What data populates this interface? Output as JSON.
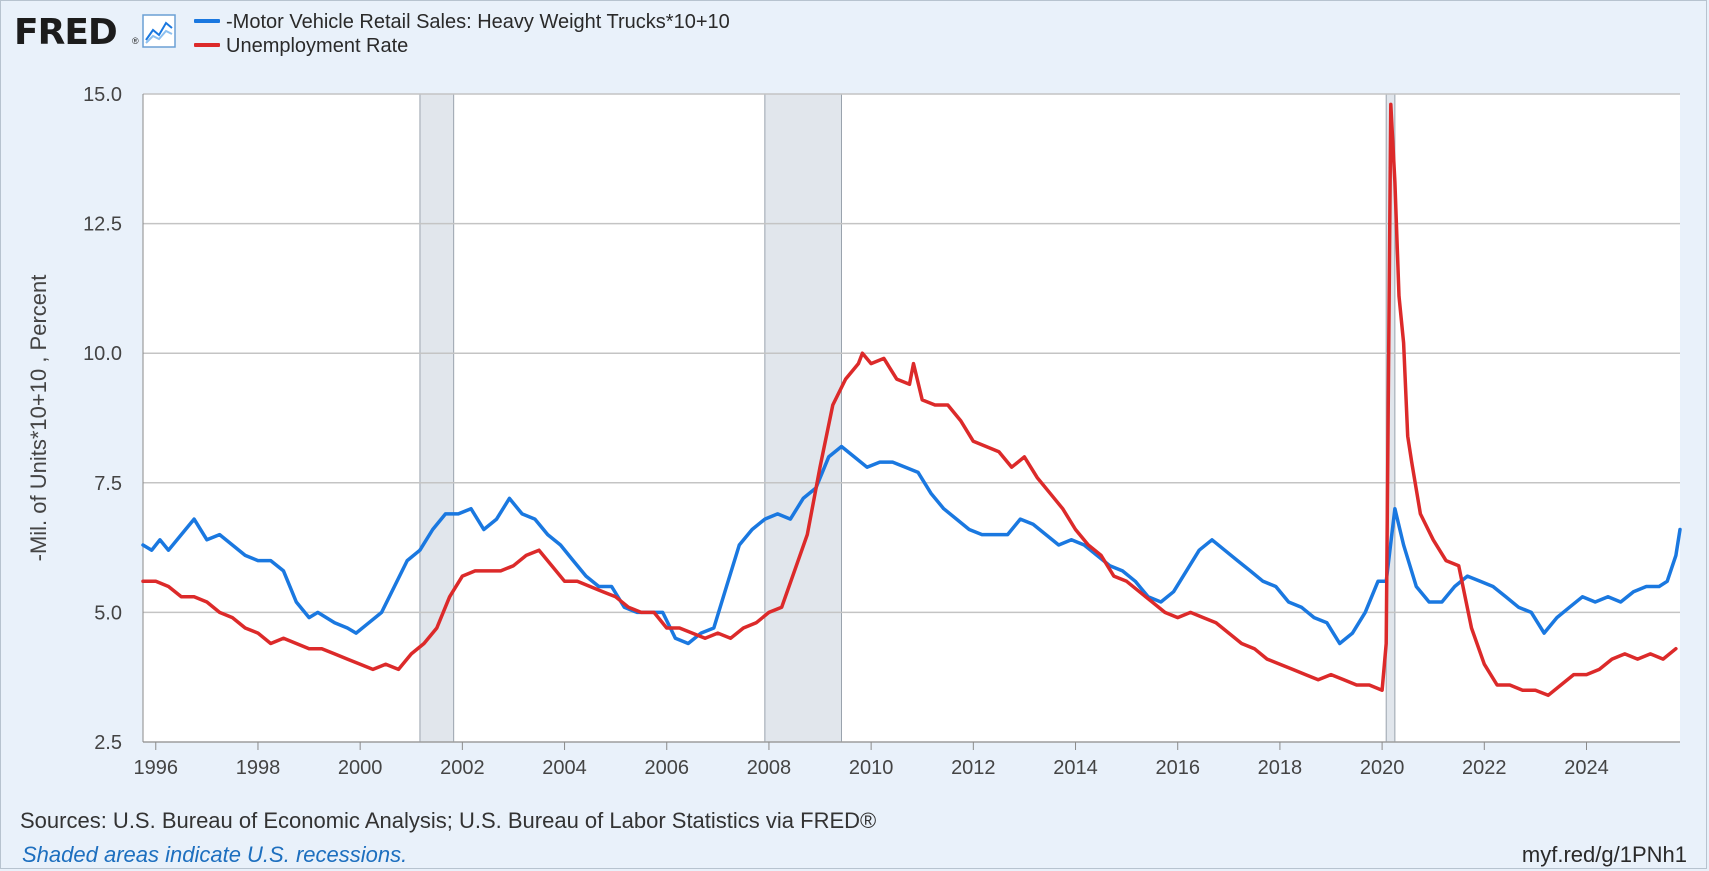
{
  "brand": {
    "logo_text": "FRED",
    "logo_mark": "®",
    "logo_icon": "line-chart-icon"
  },
  "colors": {
    "background": "#e9f1fa",
    "plot_background": "#ffffff",
    "series_1": "#1a78e0",
    "series_2": "#dc2a2a",
    "recession": "#e1e6ec",
    "grid": "#c4c4c4",
    "link": "#1d6fbf"
  },
  "footer": {
    "sources": "Sources: U.S. Bureau of Economic Analysis; U.S. Bureau of Labor Statistics via FRED®",
    "note": "Shaded areas indicate U.S. recessions.",
    "link": "myf.red/g/1PNh1"
  },
  "chart_data": {
    "type": "line",
    "title": "",
    "xlabel": "",
    "ylabel": "-Mil. of Units*10+10 , Percent",
    "xlim": [
      1995.75,
      2025.83
    ],
    "ylim": [
      2.5,
      15.0
    ],
    "yticks": [
      "2.5",
      "5.0",
      "7.5",
      "10.0",
      "12.5",
      "15.0"
    ],
    "xticks": [
      "1996",
      "1998",
      "2000",
      "2002",
      "2004",
      "2006",
      "2008",
      "2010",
      "2012",
      "2014",
      "2016",
      "2018",
      "2020",
      "2022",
      "2024"
    ],
    "grid": true,
    "legend_position": "top-left",
    "recessions": [
      [
        2001.17,
        2001.83
      ],
      [
        2007.92,
        2009.42
      ],
      [
        2020.08,
        2020.25
      ]
    ],
    "series": [
      {
        "name": "-Motor Vehicle Retail Sales: Heavy Weight Trucks*10+10",
        "color": "#1a78e0",
        "x": [
          1995.75,
          1995.92,
          1996.08,
          1996.25,
          1996.5,
          1996.75,
          1997.0,
          1997.25,
          1997.5,
          1997.75,
          1998.0,
          1998.25,
          1998.5,
          1998.75,
          1999.0,
          1999.17,
          1999.5,
          1999.75,
          1999.92,
          2000.17,
          2000.42,
          2000.67,
          2000.92,
          2001.17,
          2001.42,
          2001.67,
          2001.92,
          2002.17,
          2002.42,
          2002.67,
          2002.92,
          2003.17,
          2003.42,
          2003.67,
          2003.92,
          2004.17,
          2004.42,
          2004.67,
          2004.92,
          2005.17,
          2005.42,
          2005.67,
          2005.92,
          2006.17,
          2006.42,
          2006.67,
          2006.92,
          2007.17,
          2007.42,
          2007.67,
          2007.92,
          2008.17,
          2008.42,
          2008.67,
          2008.92,
          2009.17,
          2009.42,
          2009.67,
          2009.92,
          2010.17,
          2010.42,
          2010.67,
          2010.92,
          2011.17,
          2011.42,
          2011.67,
          2011.92,
          2012.17,
          2012.42,
          2012.67,
          2012.92,
          2013.17,
          2013.42,
          2013.67,
          2013.92,
          2014.17,
          2014.42,
          2014.67,
          2014.92,
          2015.17,
          2015.42,
          2015.67,
          2015.92,
          2016.17,
          2016.42,
          2016.67,
          2016.92,
          2017.17,
          2017.42,
          2017.67,
          2017.92,
          2018.17,
          2018.42,
          2018.67,
          2018.92,
          2019.17,
          2019.42,
          2019.67,
          2019.92,
          2020.08,
          2020.25,
          2020.42,
          2020.67,
          2020.92,
          2021.17,
          2021.42,
          2021.67,
          2021.92,
          2022.17,
          2022.42,
          2022.67,
          2022.92,
          2023.17,
          2023.42,
          2023.67,
          2023.92,
          2024.17,
          2024.42,
          2024.67,
          2024.92,
          2025.17,
          2025.42,
          2025.58,
          2025.75,
          2025.83
        ],
        "values": [
          6.3,
          6.2,
          6.4,
          6.2,
          6.5,
          6.8,
          6.4,
          6.5,
          6.3,
          6.1,
          6.0,
          6.0,
          5.8,
          5.2,
          4.9,
          5.0,
          4.8,
          4.7,
          4.6,
          4.8,
          5.0,
          5.5,
          6.0,
          6.2,
          6.6,
          6.9,
          6.9,
          7.0,
          6.6,
          6.8,
          7.2,
          6.9,
          6.8,
          6.5,
          6.3,
          6.0,
          5.7,
          5.5,
          5.5,
          5.1,
          5.0,
          5.0,
          5.0,
          4.5,
          4.4,
          4.6,
          4.7,
          5.5,
          6.3,
          6.6,
          6.8,
          6.9,
          6.8,
          7.2,
          7.4,
          8.0,
          8.2,
          8.0,
          7.8,
          7.9,
          7.9,
          7.8,
          7.7,
          7.3,
          7.0,
          6.8,
          6.6,
          6.5,
          6.5,
          6.5,
          6.8,
          6.7,
          6.5,
          6.3,
          6.4,
          6.3,
          6.1,
          5.9,
          5.8,
          5.6,
          5.3,
          5.2,
          5.4,
          5.8,
          6.2,
          6.4,
          6.2,
          6.0,
          5.8,
          5.6,
          5.5,
          5.2,
          5.1,
          4.9,
          4.8,
          4.4,
          4.6,
          5.0,
          5.6,
          5.6,
          7.0,
          6.3,
          5.5,
          5.2,
          5.2,
          5.5,
          5.7,
          5.6,
          5.5,
          5.3,
          5.1,
          5.0,
          4.6,
          4.9,
          5.1,
          5.3,
          5.2,
          5.3,
          5.2,
          5.4,
          5.5,
          5.5,
          5.6,
          6.1,
          6.6
        ]
      },
      {
        "name": "Unemployment Rate",
        "color": "#dc2a2a",
        "x": [
          1995.75,
          1996.0,
          1996.25,
          1996.5,
          1996.75,
          1997.0,
          1997.25,
          1997.5,
          1997.75,
          1998.0,
          1998.25,
          1998.5,
          1998.75,
          1999.0,
          1999.25,
          1999.5,
          1999.75,
          2000.0,
          2000.25,
          2000.5,
          2000.75,
          2001.0,
          2001.25,
          2001.5,
          2001.75,
          2002.0,
          2002.25,
          2002.5,
          2002.75,
          2003.0,
          2003.25,
          2003.5,
          2003.75,
          2004.0,
          2004.25,
          2004.5,
          2004.75,
          2005.0,
          2005.25,
          2005.5,
          2005.75,
          2006.0,
          2006.25,
          2006.5,
          2006.75,
          2007.0,
          2007.25,
          2007.5,
          2007.75,
          2008.0,
          2008.25,
          2008.5,
          2008.75,
          2009.0,
          2009.25,
          2009.5,
          2009.75,
          2009.83,
          2010.0,
          2010.25,
          2010.5,
          2010.75,
          2010.83,
          2011.0,
          2011.25,
          2011.5,
          2011.75,
          2012.0,
          2012.25,
          2012.5,
          2012.75,
          2013.0,
          2013.25,
          2013.5,
          2013.75,
          2014.0,
          2014.25,
          2014.5,
          2014.75,
          2015.0,
          2015.25,
          2015.5,
          2015.75,
          2016.0,
          2016.25,
          2016.5,
          2016.75,
          2017.0,
          2017.25,
          2017.5,
          2017.75,
          2018.0,
          2018.25,
          2018.5,
          2018.75,
          2019.0,
          2019.25,
          2019.5,
          2019.75,
          2020.0,
          2020.08,
          2020.17,
          2020.25,
          2020.33,
          2020.42,
          2020.5,
          2020.58,
          2020.75,
          2021.0,
          2021.25,
          2021.5,
          2021.75,
          2022.0,
          2022.25,
          2022.5,
          2022.75,
          2023.0,
          2023.25,
          2023.5,
          2023.75,
          2024.0,
          2024.25,
          2024.5,
          2024.75,
          2025.0,
          2025.25,
          2025.5,
          2025.75
        ],
        "values": [
          5.6,
          5.6,
          5.5,
          5.3,
          5.3,
          5.2,
          5.0,
          4.9,
          4.7,
          4.6,
          4.4,
          4.5,
          4.4,
          4.3,
          4.3,
          4.2,
          4.1,
          4.0,
          3.9,
          4.0,
          3.9,
          4.2,
          4.4,
          4.7,
          5.3,
          5.7,
          5.8,
          5.8,
          5.8,
          5.9,
          6.1,
          6.2,
          5.9,
          5.6,
          5.6,
          5.5,
          5.4,
          5.3,
          5.1,
          5.0,
          5.0,
          4.7,
          4.7,
          4.6,
          4.5,
          4.6,
          4.5,
          4.7,
          4.8,
          5.0,
          5.1,
          5.8,
          6.5,
          7.8,
          9.0,
          9.5,
          9.8,
          10.0,
          9.8,
          9.9,
          9.5,
          9.4,
          9.8,
          9.1,
          9.0,
          9.0,
          8.7,
          8.3,
          8.2,
          8.1,
          7.8,
          8.0,
          7.6,
          7.3,
          7.0,
          6.6,
          6.3,
          6.1,
          5.7,
          5.6,
          5.4,
          5.2,
          5.0,
          4.9,
          5.0,
          4.9,
          4.8,
          4.6,
          4.4,
          4.3,
          4.1,
          4.0,
          3.9,
          3.8,
          3.7,
          3.8,
          3.7,
          3.6,
          3.6,
          3.5,
          4.4,
          14.8,
          13.3,
          11.1,
          10.2,
          8.4,
          7.9,
          6.9,
          6.4,
          6.0,
          5.9,
          4.7,
          4.0,
          3.6,
          3.6,
          3.5,
          3.5,
          3.4,
          3.6,
          3.8,
          3.8,
          3.9,
          4.1,
          4.2,
          4.1,
          4.2,
          4.1,
          4.3
        ]
      }
    ]
  }
}
